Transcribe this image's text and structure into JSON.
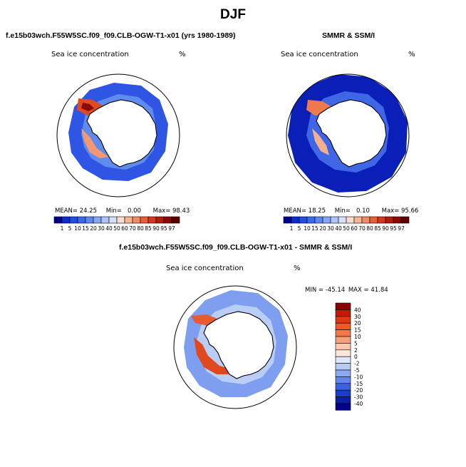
{
  "main_title": "DJF",
  "panels": [
    {
      "title": "f.e15b03wch.F55W5SC.f09_f09.CLB-OGW-T1-x01 (yrs 1980-1989)",
      "variable": "Sea ice concentration",
      "units": "%",
      "stats": {
        "mean": "24.25",
        "min": "0.00",
        "max": "98.43",
        "mean_label": "MEAN=",
        "min_label": "Min=",
        "max_label": "Max="
      }
    },
    {
      "title": "SMMR & SSM/I",
      "variable": "Sea ice concentration",
      "units": "%",
      "stats": {
        "mean": "18.25",
        "min": "0.10",
        "max": "95.66",
        "mean_label": "MEAN=",
        "min_label": "Min=",
        "max_label": "Max="
      }
    }
  ],
  "diff_panel": {
    "title": "f.e15b03wch.F55W5SC.f09_f09.CLB-OGW-T1-x01 - SMMR & SSM/I",
    "variable": "Sea ice concentration",
    "units": "%",
    "stats": {
      "min_label": "MIN =",
      "min": "-45.14",
      "max_label": "MAX =",
      "max": "41.84"
    }
  },
  "concentration_colorbar": {
    "labels": [
      "1",
      "5",
      "10",
      "15",
      "20",
      "30",
      "40",
      "50",
      "60",
      "70",
      "80",
      "85",
      "90",
      "95",
      "97"
    ],
    "colors": [
      "#00008b",
      "#0a2ccf",
      "#1f4ee0",
      "#3a6ae8",
      "#5d88ee",
      "#86a6f2",
      "#adc3f6",
      "#d4e0fa",
      "#f8dccc",
      "#f5b494",
      "#f08c64",
      "#e8603a",
      "#d4381c",
      "#b01c0a",
      "#8a0a04",
      "#5e0000"
    ]
  },
  "difference_colorbar": {
    "labels": [
      "40",
      "30",
      "20",
      "15",
      "10",
      "5",
      "2",
      "0",
      "-2",
      "-5",
      "-10",
      "-15",
      "-20",
      "-30",
      "-40"
    ],
    "colors": [
      "#8b0000",
      "#c21a06",
      "#e0380e",
      "#f05828",
      "#f5784a",
      "#f8a07c",
      "#fbc8ae",
      "#fbe6da",
      "#dfe8fa",
      "#b6cbf6",
      "#8ca9f0",
      "#6286ea",
      "#3b60e0",
      "#1c3ccf",
      "#0a1ea8",
      "#00008b"
    ]
  },
  "chart_data": [
    {
      "type": "heatmap",
      "title": "Sea ice concentration",
      "units": "%",
      "mean": 24.25,
      "min": 0.0,
      "max": 98.43,
      "colorbar_levels": [
        1,
        5,
        10,
        15,
        20,
        30,
        40,
        50,
        60,
        70,
        80,
        85,
        90,
        95,
        97
      ]
    },
    {
      "type": "heatmap",
      "title": "Sea ice concentration",
      "units": "%",
      "mean": 18.25,
      "min": 0.1,
      "max": 95.66,
      "colorbar_levels": [
        1,
        5,
        10,
        15,
        20,
        30,
        40,
        50,
        60,
        70,
        80,
        85,
        90,
        95,
        97
      ]
    },
    {
      "type": "heatmap",
      "title": "Sea ice concentration",
      "units": "%",
      "min": -45.14,
      "max": 41.84,
      "colorbar_levels": [
        40,
        30,
        20,
        15,
        10,
        5,
        2,
        0,
        -2,
        -5,
        -10,
        -15,
        -20,
        -30,
        -40
      ]
    }
  ]
}
